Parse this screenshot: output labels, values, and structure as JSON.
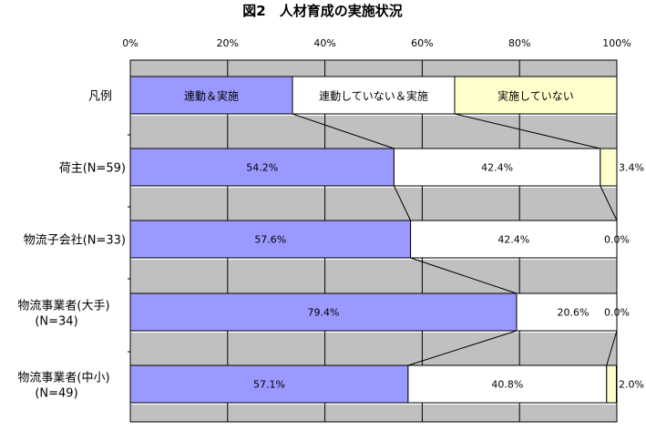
{
  "chart_data": {
    "type": "bar",
    "stacked": "100%",
    "orientation": "horizontal",
    "title": "図2　人材育成の実施状況",
    "xlim": [
      0,
      100
    ],
    "x_ticks": [
      "0%",
      "20%",
      "40%",
      "60%",
      "80%",
      "100%"
    ],
    "grid": true,
    "legend_row": {
      "label": "凡例",
      "entries": [
        "連動＆実施",
        "連動していない＆実施",
        "実施していない"
      ]
    },
    "categories": [
      [
        "荷主(N=59)"
      ],
      [
        "物流子会社(N=33)"
      ],
      [
        "物流事業者(大手)",
        "(N=34)"
      ],
      [
        "物流事業者(中小)",
        "(N=49)"
      ]
    ],
    "series": [
      {
        "name": "連動＆実施",
        "color": "#9999ff",
        "values": [
          54.2,
          57.6,
          79.4,
          57.1
        ],
        "labels": [
          "54.2%",
          "57.6%",
          "79.4%",
          "57.1%"
        ]
      },
      {
        "name": "連動していない＆実施",
        "color": "#ffffff",
        "values": [
          42.4,
          42.4,
          20.6,
          40.8
        ],
        "labels": [
          "42.4%",
          "42.4%",
          "20.6%",
          "40.8%"
        ]
      },
      {
        "name": "実施していない",
        "color": "#ffffcc",
        "values": [
          3.4,
          0.0,
          0.0,
          2.0
        ],
        "labels": [
          "3.4%",
          "0.0%",
          "0.0%",
          "2.0%"
        ]
      }
    ]
  }
}
